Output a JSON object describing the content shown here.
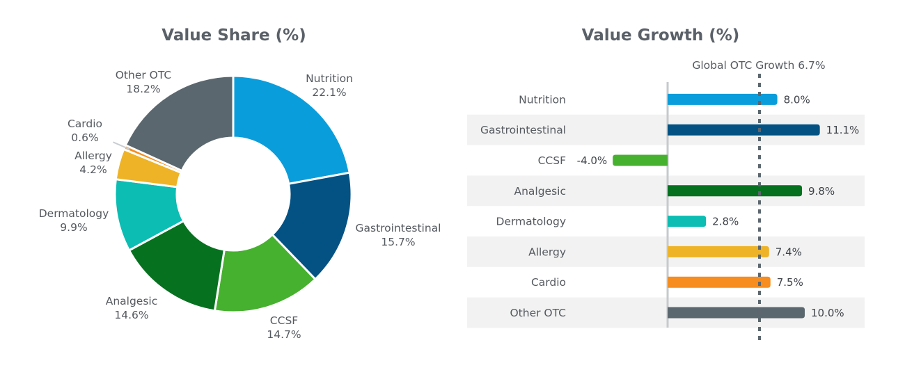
{
  "chart_data": [
    {
      "type": "pie",
      "variant": "donut",
      "title": "Value Share (%)",
      "categories": [
        "Nutrition",
        "Gastrointestinal",
        "CCSF",
        "Analgesic",
        "Dermatology",
        "Allergy",
        "Cardio",
        "Other OTC"
      ],
      "values": [
        22.1,
        15.7,
        14.7,
        14.6,
        9.9,
        4.2,
        0.6,
        18.2
      ],
      "value_labels": [
        "22.1%",
        "15.7%",
        "14.7%",
        "14.6%",
        "9.9%",
        "4.2%",
        "0.6%",
        "18.2%"
      ],
      "colors": [
        "#0a9ddc",
        "#035283",
        "#46b12e",
        "#06711f",
        "#0bbdb3",
        "#eeb326",
        "#f68d1e",
        "#5b676e"
      ]
    },
    {
      "type": "bar",
      "orientation": "horizontal",
      "title": "Value Growth (%)",
      "categories": [
        "Nutrition",
        "Gastrointestinal",
        "CCSF",
        "Analgesic",
        "Dermatology",
        "Allergy",
        "Cardio",
        "Other OTC"
      ],
      "values": [
        8.0,
        11.1,
        -4.0,
        9.8,
        2.8,
        7.4,
        7.5,
        10.0
      ],
      "value_labels": [
        "8.0%",
        "11.1%",
        "-4.0%",
        "9.8%",
        "2.8%",
        "7.4%",
        "7.5%",
        "10.0%"
      ],
      "colors": [
        "#0a9ddc",
        "#035283",
        "#46b12e",
        "#06711f",
        "#0bbdb3",
        "#eeb326",
        "#f68d1e",
        "#5b676e"
      ],
      "reference_line": {
        "label": "Global OTC Growth 6.7%",
        "value": 6.7
      },
      "xlim": [
        -5,
        12
      ]
    }
  ]
}
